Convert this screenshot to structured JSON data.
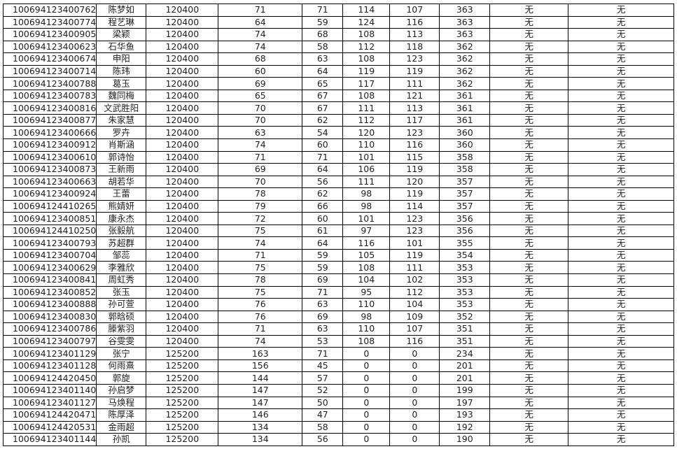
{
  "rows": [
    [
      "100694123400762",
      "陈梦如",
      "120400",
      "71",
      "71",
      "114",
      "107",
      "363",
      "无",
      "无"
    ],
    [
      "100694123400774",
      "程艺琳",
      "120400",
      "64",
      "59",
      "124",
      "116",
      "363",
      "无",
      "无"
    ],
    [
      "100694123400905",
      "梁颖",
      "120400",
      "74",
      "68",
      "108",
      "113",
      "363",
      "无",
      "无"
    ],
    [
      "100694123400623",
      "石华鱼",
      "120400",
      "74",
      "58",
      "112",
      "118",
      "362",
      "无",
      "无"
    ],
    [
      "100694123400674",
      "申阳",
      "120400",
      "68",
      "63",
      "108",
      "123",
      "362",
      "无",
      "无"
    ],
    [
      "100694123400714",
      "陈玮",
      "120400",
      "60",
      "64",
      "119",
      "119",
      "362",
      "无",
      "无"
    ],
    [
      "100694123400788",
      "葛玉",
      "120400",
      "69",
      "65",
      "117",
      "111",
      "362",
      "无",
      "无"
    ],
    [
      "100694123400783",
      "魏同梅",
      "120400",
      "65",
      "67",
      "108",
      "121",
      "361",
      "无",
      "无"
    ],
    [
      "100694123400816",
      "文武胜阳",
      "120400",
      "70",
      "67",
      "111",
      "113",
      "361",
      "无",
      "无"
    ],
    [
      "100694123400877",
      "朱家慧",
      "120400",
      "70",
      "62",
      "112",
      "117",
      "361",
      "无",
      "无"
    ],
    [
      "100694123400666",
      "罗卉",
      "120400",
      "63",
      "54",
      "120",
      "123",
      "360",
      "无",
      "无"
    ],
    [
      "100694123400912",
      "肖斯涵",
      "120400",
      "74",
      "60",
      "110",
      "116",
      "360",
      "无",
      "无"
    ],
    [
      "100694123400610",
      "郭诗怡",
      "120400",
      "71",
      "71",
      "101",
      "115",
      "358",
      "无",
      "无"
    ],
    [
      "100694123400873",
      "王新雨",
      "120400",
      "69",
      "64",
      "106",
      "119",
      "358",
      "无",
      "无"
    ],
    [
      "100694123400663",
      "胡若华",
      "120400",
      "70",
      "56",
      "111",
      "120",
      "357",
      "无",
      "无"
    ],
    [
      "100694123400924",
      "王蕾",
      "120400",
      "78",
      "62",
      "98",
      "119",
      "357",
      "无",
      "无"
    ],
    [
      "100694124410265",
      "熊婧妍",
      "120400",
      "79",
      "66",
      "98",
      "114",
      "357",
      "无",
      "无"
    ],
    [
      "100694123400851",
      "康永杰",
      "120400",
      "72",
      "60",
      "101",
      "123",
      "356",
      "无",
      "无"
    ],
    [
      "100694124410250",
      "张毅航",
      "120400",
      "75",
      "61",
      "97",
      "123",
      "356",
      "无",
      "无"
    ],
    [
      "100694123400793",
      "苏超群",
      "120400",
      "74",
      "64",
      "116",
      "101",
      "355",
      "无",
      "无"
    ],
    [
      "100694123400704",
      "邹蕊",
      "120400",
      "71",
      "59",
      "105",
      "119",
      "354",
      "无",
      "无"
    ],
    [
      "100694123400629",
      "李雅欣",
      "120400",
      "75",
      "59",
      "108",
      "111",
      "353",
      "无",
      "无"
    ],
    [
      "100694123400841",
      "周虹秀",
      "120400",
      "78",
      "69",
      "104",
      "102",
      "353",
      "无",
      "无"
    ],
    [
      "100694123400852",
      "张玉",
      "120400",
      "75",
      "71",
      "95",
      "112",
      "353",
      "无",
      "无"
    ],
    [
      "100694123400888",
      "孙可萱",
      "120400",
      "76",
      "63",
      "110",
      "104",
      "353",
      "无",
      "无"
    ],
    [
      "100694123400830",
      "郭晗硕",
      "120400",
      "76",
      "69",
      "98",
      "109",
      "352",
      "无",
      "无"
    ],
    [
      "100694123400786",
      "滕紫羽",
      "120400",
      "71",
      "63",
      "110",
      "107",
      "351",
      "无",
      "无"
    ],
    [
      "100694123400797",
      "谷雯雯",
      "120400",
      "74",
      "53",
      "108",
      "116",
      "351",
      "无",
      "无"
    ],
    [
      "100694123401129",
      "张宁",
      "125200",
      "163",
      "71",
      "0",
      "0",
      "234",
      "无",
      "无"
    ],
    [
      "100694123401128",
      "何雨熹",
      "125200",
      "156",
      "45",
      "0",
      "0",
      "201",
      "无",
      "无"
    ],
    [
      "100694124420450",
      "郭旋",
      "125200",
      "144",
      "57",
      "0",
      "0",
      "201",
      "无",
      "无"
    ],
    [
      "100694123401140",
      "孙启梦",
      "125200",
      "147",
      "52",
      "0",
      "0",
      "199",
      "无",
      "无"
    ],
    [
      "100694123401127",
      "马焕程",
      "125200",
      "147",
      "50",
      "0",
      "0",
      "197",
      "无",
      "无"
    ],
    [
      "100694124420471",
      "陈厚泽",
      "125200",
      "146",
      "47",
      "0",
      "0",
      "193",
      "无",
      "无"
    ],
    [
      "100694124420531",
      "金雨超",
      "125200",
      "134",
      "58",
      "0",
      "0",
      "192",
      "无",
      "无"
    ],
    [
      "100694123401144",
      "孙凯",
      "125200",
      "134",
      "56",
      "0",
      "0",
      "190",
      "无",
      "无"
    ]
  ]
}
